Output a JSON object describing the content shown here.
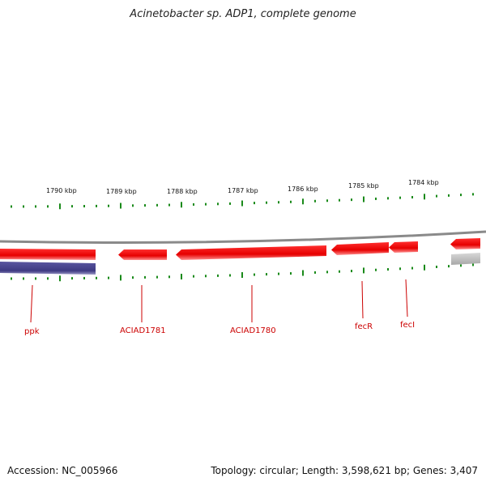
{
  "title": "Acinetobacter sp. ADP1, complete genome",
  "scale_labels": [
    "1790 kbp",
    "1789 kbp",
    "1788 kbp",
    "1787 kbp",
    "1786 kbp",
    "1785 kbp",
    "1784 kbp"
  ],
  "genes": [
    {
      "label": "ppk",
      "strand": "reverse"
    },
    {
      "label": "ACIAD1781",
      "strand": "reverse"
    },
    {
      "label": "ACIAD1780",
      "strand": "reverse"
    },
    {
      "label": "fecR",
      "strand": "reverse"
    },
    {
      "label": "fecI",
      "strand": "reverse"
    }
  ],
  "colors": {
    "backbone": "#8a8a8a",
    "gene": "#ee0000",
    "gene_label": "#cc0000",
    "ticks": "#1a8a1a",
    "blue_feature": "#4a4690",
    "grey_feature": "#bdbdbd"
  },
  "footer": {
    "accession": "Accession: NC_005966",
    "stats": "Topology: circular; Length: 3,598,621 bp; Genes: 3,407"
  }
}
